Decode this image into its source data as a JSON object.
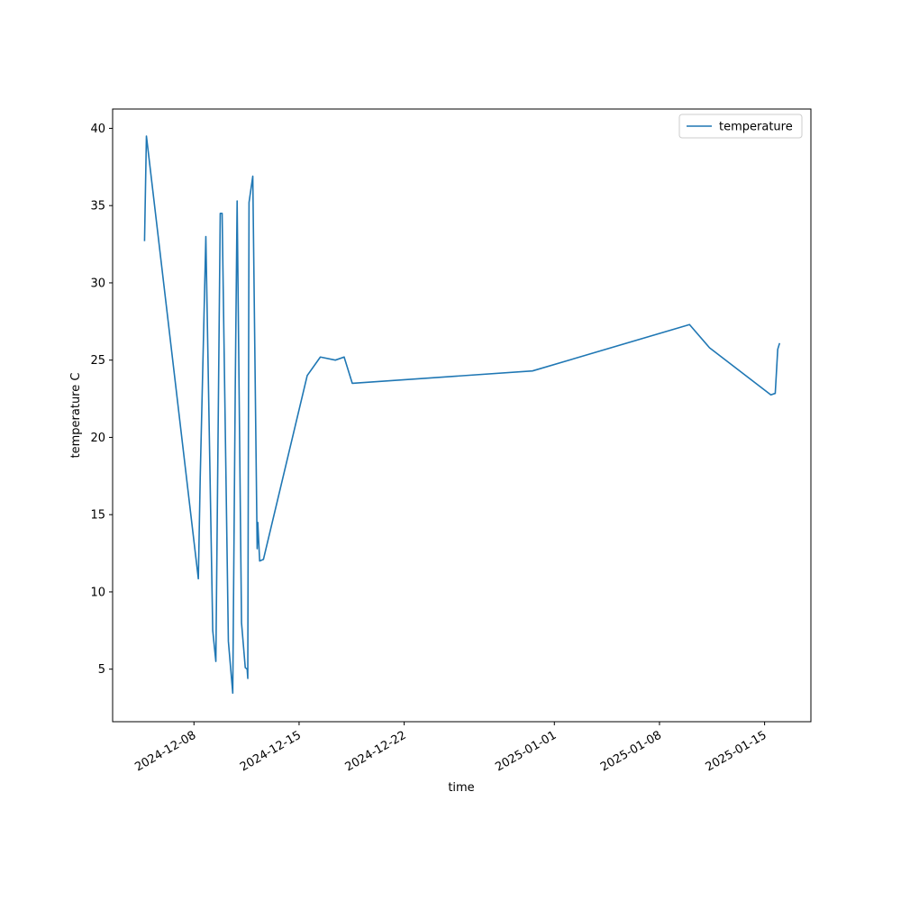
{
  "chart_data": {
    "type": "line",
    "xlabel": "time",
    "ylabel": "temperature C",
    "x": [
      "2024-12-04T17:00",
      "2024-12-04T20:00",
      "2024-12-08T07:00",
      "2024-12-08T10:00",
      "2024-12-08T19:00",
      "2024-12-09T06:00",
      "2024-12-09T11:00",
      "2024-12-09T18:00",
      "2024-12-09T21:00",
      "2024-12-10T07:00",
      "2024-12-10T14:00",
      "2024-12-10T18:00",
      "2024-12-10T21:00",
      "2024-12-11T04:00",
      "2024-12-11T10:00",
      "2024-12-11T13:00",
      "2024-12-11T14:00",
      "2024-12-11T16:00",
      "2024-12-11T22:00",
      "2024-12-12T05:00",
      "2024-12-12T06:00",
      "2024-12-12T09:00",
      "2024-12-12T15:00",
      "2024-12-15T13:00",
      "2024-12-16T10:00",
      "2024-12-17T10:00",
      "2024-12-18T00:00",
      "2024-12-18T13:00",
      "2024-12-30T13:00",
      "2025-01-10T00:00",
      "2025-01-11T08:00",
      "2025-01-15T10:00",
      "2025-01-15T17:00",
      "2025-01-15T21:00",
      "2025-01-16T00:00"
    ],
    "series": [
      {
        "name": "temperature",
        "color": "#1f77b4",
        "values": [
          32.7,
          39.5,
          10.85,
          17.4,
          33,
          7.5,
          5.5,
          34.5,
          34.5,
          6.8,
          3.45,
          23.2,
          35.3,
          8,
          5.1,
          5,
          4.4,
          35.2,
          36.9,
          12.8,
          14.5,
          12,
          12.1,
          24,
          25.2,
          25,
          25.2,
          23.5,
          24.3,
          27.3,
          25.8,
          22.75,
          22.85,
          25.7,
          26.1
        ]
      }
    ],
    "xlim": [
      "2024-12-02T14:00",
      "2025-01-18T02:00"
    ],
    "xticks": [
      "2024-12-08",
      "2024-12-15",
      "2024-12-22",
      "2025-01-01",
      "2025-01-08",
      "2025-01-15"
    ],
    "ylim": [
      1.6,
      41.25
    ],
    "yticks": [
      5,
      10,
      15,
      20,
      25,
      30,
      35,
      40
    ],
    "grid": false,
    "legend": "upper right"
  }
}
